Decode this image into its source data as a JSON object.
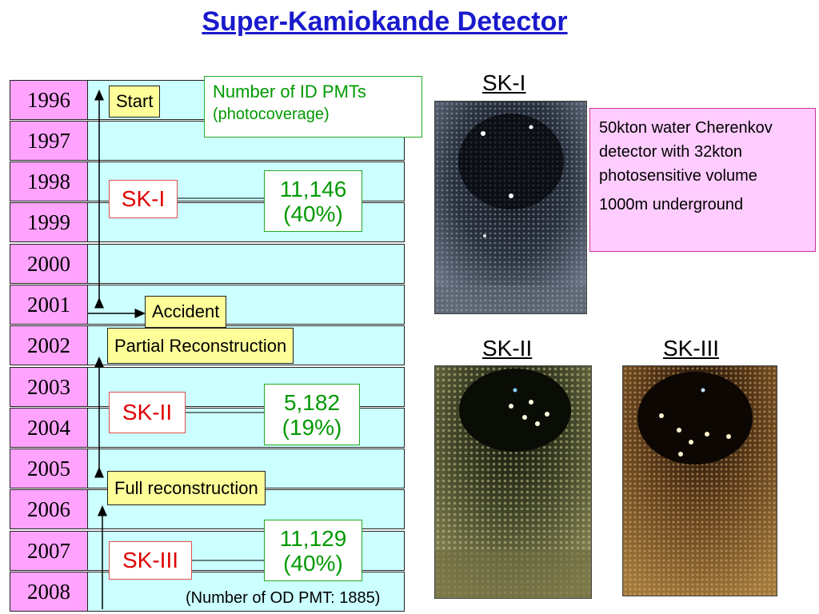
{
  "title": "Super-Kamiokande Detector",
  "years": [
    "1996",
    "1997",
    "1998",
    "1999",
    "2000",
    "2001",
    "2002",
    "2003",
    "2004",
    "2005",
    "2006",
    "2007",
    "2008"
  ],
  "timeline_labels": {
    "start": "Start",
    "accident": "Accident",
    "partial": "Partial Reconstruction",
    "full": "Full reconstruction"
  },
  "phases": [
    {
      "name": "SK-I",
      "pmts": "11,146",
      "coverage": "(40%)"
    },
    {
      "name": "SK-II",
      "pmts": "5,182",
      "coverage": "(19%)"
    },
    {
      "name": "SK-III",
      "pmts": "11,129",
      "coverage": "(40%)"
    }
  ],
  "pmt_legend": {
    "line1": "Number of ID PMTs",
    "line2": "(photocoverage)"
  },
  "photo_titles": {
    "sk1": "SK-I",
    "sk2": "SK-II",
    "sk3": "SK-III"
  },
  "info": {
    "line1": "50kton water Cherenkov detector with 32kton photosensitive volume",
    "line2": "1000m underground"
  },
  "od_note": "(Number of OD PMT: 1885)",
  "colors": {
    "title": "#1a1acc",
    "year_cell": "#ffa3ff",
    "band": "#ccffff",
    "label_box": "#ffff99",
    "phase_text": "#e00000",
    "pmt_text": "#009900",
    "info_box": "#ffccff"
  }
}
